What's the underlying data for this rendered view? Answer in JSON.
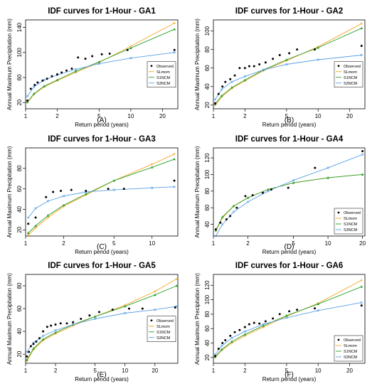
{
  "figure": {
    "legend_labels": [
      "Observed",
      "SLmom",
      "S1NCM",
      "S3NCM"
    ]
  },
  "colors": {
    "Observed": "#000000",
    "SLmom": "#f5a623",
    "S1NCM": "#2aa02a",
    "S3NCM": "#5aa0e6"
  },
  "chart_data": [
    {
      "type": "line",
      "title": "IDF curves for 1-Hour - GA1",
      "xlabel": "Return period (years)",
      "ylabel": "Annual Maximum Precipitation (mm)",
      "panel_letter": "(A)",
      "xscale": "log",
      "xlim": [
        1,
        28
      ],
      "ylim": [
        10,
        152
      ],
      "xticks": [
        1,
        2,
        5,
        10,
        20
      ],
      "yticks": [
        20,
        60,
        100,
        140
      ],
      "legend_position": "right-middle",
      "observed": {
        "x": [
          1.04,
          1.12,
          1.22,
          1.3,
          1.45,
          1.6,
          1.78,
          2.0,
          2.2,
          2.45,
          2.75,
          3.15,
          3.7,
          4.3,
          5.3,
          6.3,
          9.3,
          26
        ],
        "y": [
          23,
          42,
          48,
          52,
          55,
          58,
          62,
          65,
          68,
          71,
          74,
          92,
          90,
          94,
          97,
          98,
          104,
          104
        ]
      },
      "series": [
        {
          "name": "SLmom",
          "x": [
            1.04,
            1.2,
            1.5,
            2,
            3,
            5,
            10,
            26
          ],
          "y": [
            20,
            33,
            45,
            55,
            68,
            84,
            110,
            147
          ]
        },
        {
          "name": "S1NCM",
          "x": [
            1.04,
            1.2,
            1.5,
            2,
            3,
            5,
            10,
            26
          ],
          "y": [
            21,
            34,
            46,
            56,
            70,
            85,
            107,
            137
          ]
        },
        {
          "name": "S3NCM",
          "x": [
            1.04,
            1.2,
            1.5,
            2,
            3,
            5,
            10,
            26
          ],
          "y": [
            30,
            45,
            56,
            64,
            73,
            82,
            91,
            100
          ]
        }
      ]
    },
    {
      "type": "line",
      "title": "IDF curves for 1-Hour - GA2",
      "xlabel": "Return period (years)",
      "ylabel": "Annual Maximum Precipitation (mm)",
      "panel_letter": "(B)",
      "xscale": "log",
      "xlim": [
        1,
        28
      ],
      "ylim": [
        16,
        112
      ],
      "xticks": [
        1,
        2,
        5,
        10,
        20
      ],
      "yticks": [
        20,
        40,
        60,
        80,
        100
      ],
      "legend_position": "right-middle",
      "observed": {
        "x": [
          1.04,
          1.12,
          1.22,
          1.3,
          1.45,
          1.6,
          1.78,
          2.0,
          2.2,
          2.45,
          2.75,
          3.15,
          3.7,
          4.3,
          5.3,
          6.3,
          9.3,
          26
        ],
        "y": [
          22,
          32,
          40,
          45,
          48,
          52,
          60,
          60,
          62,
          62,
          64,
          66,
          70,
          74,
          76,
          80,
          80,
          84
        ]
      },
      "series": [
        {
          "name": "SLmom",
          "x": [
            1.04,
            1.2,
            1.5,
            2,
            3,
            5,
            10,
            26
          ],
          "y": [
            20,
            29,
            38,
            46,
            57,
            68,
            83,
            108
          ]
        },
        {
          "name": "S1NCM",
          "x": [
            1.04,
            1.2,
            1.5,
            2,
            3,
            5,
            10,
            26
          ],
          "y": [
            21,
            30,
            39,
            47,
            58,
            69,
            82,
            103
          ]
        },
        {
          "name": "S3NCM",
          "x": [
            1.04,
            1.2,
            1.5,
            2,
            3,
            5,
            10,
            26
          ],
          "y": [
            26,
            37,
            45,
            51,
            58,
            64,
            69,
            74
          ]
        }
      ]
    },
    {
      "type": "line",
      "title": "IDF curves for 1-Hour - GA3",
      "xlabel": "Return period (years)",
      "ylabel": "Annual Maximum Precipitation (mm)",
      "panel_letter": "(C)",
      "xscale": "log",
      "xlim": [
        1,
        16
      ],
      "ylim": [
        14,
        100
      ],
      "xticks": [
        1,
        2,
        5,
        10
      ],
      "yticks": [
        20,
        40,
        60,
        80
      ],
      "legend_position": "none",
      "observed": {
        "x": [
          1.05,
          1.2,
          1.45,
          1.65,
          1.9,
          2.3,
          3.0,
          4.5,
          6.0,
          15
        ],
        "y": [
          26,
          32,
          52,
          57,
          58,
          59,
          58,
          60,
          60,
          68
        ]
      },
      "series": [
        {
          "name": "SLmom",
          "x": [
            1.05,
            1.2,
            1.5,
            2,
            3,
            5,
            10,
            15
          ],
          "y": [
            15,
            22,
            32,
            43,
            54,
            68,
            84,
            94
          ]
        },
        {
          "name": "S1NCM",
          "x": [
            1.05,
            1.2,
            1.5,
            2,
            3,
            5,
            10,
            15
          ],
          "y": [
            17,
            24,
            34,
            44,
            55,
            68,
            81,
            89
          ]
        },
        {
          "name": "S3NCM",
          "x": [
            1.05,
            1.2,
            1.5,
            2,
            3,
            5,
            10,
            15
          ],
          "y": [
            32,
            41,
            48,
            53,
            57,
            59,
            61,
            62
          ]
        }
      ]
    },
    {
      "type": "line",
      "title": "IDF curves for 1-Hour - GA4",
      "xlabel": "Return period (years)",
      "ylabel": "Annual Maximum Precipitation (mm)",
      "panel_letter": "(D)",
      "xscale": "log",
      "xlim": [
        1,
        21
      ],
      "ylim": [
        26,
        132
      ],
      "xticks": [
        1,
        2,
        5,
        10,
        20
      ],
      "yticks": [
        40,
        60,
        80,
        100,
        120
      ],
      "legend_position": "right-bottom",
      "observed": {
        "x": [
          1.05,
          1.15,
          1.3,
          1.4,
          1.6,
          1.9,
          2.2,
          2.7,
          3.2,
          4.5,
          7.7,
          20
        ],
        "y": [
          34,
          42,
          46,
          50,
          60,
          74,
          75,
          78,
          82,
          84,
          108,
          128
        ]
      },
      "series": [
        {
          "name": "SLmom",
          "x": [
            1.05,
            1.2,
            1.5,
            2,
            3,
            5,
            10,
            20
          ],
          "y": [
            32,
            48,
            62,
            72,
            82,
            90,
            96,
            100
          ]
        },
        {
          "name": "S1NCM",
          "x": [
            1.05,
            1.2,
            1.5,
            2,
            3,
            5,
            10,
            20
          ],
          "y": [
            33,
            49,
            62,
            72,
            82,
            90,
            96,
            100
          ]
        },
        {
          "name": "S3NCM",
          "x": [
            1.05,
            1.2,
            1.5,
            2,
            3,
            5,
            10,
            20
          ],
          "y": [
            26,
            40,
            55,
            67,
            80,
            93,
            108,
            124
          ]
        }
      ]
    },
    {
      "type": "line",
      "title": "IDF curves for 1-Hour - GA5",
      "xlabel": "Return period (years)",
      "ylabel": "Annual Maximum Precipitation (mm)",
      "panel_letter": "(E)",
      "xscale": "log",
      "xlim": [
        1,
        34
      ],
      "ylim": [
        12,
        90
      ],
      "xticks": [
        1,
        2,
        5,
        10,
        20
      ],
      "yticks": [
        20,
        40,
        60,
        80
      ],
      "legend_position": "right-middle",
      "observed": {
        "x": [
          1.03,
          1.08,
          1.13,
          1.2,
          1.28,
          1.38,
          1.5,
          1.65,
          1.8,
          2.0,
          2.25,
          2.6,
          3.0,
          3.6,
          4.4,
          5.5,
          7.5,
          11,
          15,
          32
        ],
        "y": [
          18,
          22,
          27,
          29,
          31,
          34,
          40,
          44,
          45,
          46,
          47,
          47,
          48,
          51,
          54,
          57,
          59,
          60,
          60,
          61
        ]
      },
      "series": [
        {
          "name": "SLmom",
          "x": [
            1.03,
            1.2,
            1.5,
            2,
            3,
            5,
            10,
            20,
            33
          ],
          "y": [
            14,
            24,
            32,
            38,
            45,
            53,
            63,
            75,
            86
          ]
        },
        {
          "name": "S1NCM",
          "x": [
            1.03,
            1.2,
            1.5,
            2,
            3,
            5,
            10,
            20,
            33
          ],
          "y": [
            15,
            25,
            33,
            39,
            46,
            53,
            62,
            72,
            80
          ]
        },
        {
          "name": "S3NCM",
          "x": [
            1.03,
            1.2,
            1.5,
            2,
            3,
            5,
            10,
            20,
            33
          ],
          "y": [
            22,
            30,
            36,
            41,
            46,
            51,
            56,
            59,
            62
          ]
        }
      ]
    },
    {
      "type": "line",
      "title": "IDF curves for 1-Hour - GA6",
      "xlabel": "Return period (years)",
      "ylabel": "Annual Maximum Precipitation (mm)",
      "panel_letter": "(F)",
      "xscale": "log",
      "xlim": [
        1,
        28
      ],
      "ylim": [
        12,
        135
      ],
      "xticks": [
        1,
        2,
        5,
        10,
        20
      ],
      "yticks": [
        20,
        40,
        60,
        80,
        100,
        120
      ],
      "legend_position": "right-bottom",
      "observed": {
        "x": [
          1.04,
          1.12,
          1.22,
          1.3,
          1.45,
          1.6,
          1.78,
          2.0,
          2.2,
          2.45,
          2.75,
          3.15,
          3.7,
          4.3,
          5.3,
          6.3,
          9.3,
          26
        ],
        "y": [
          22,
          32,
          40,
          44,
          50,
          55,
          58,
          62,
          66,
          68,
          67,
          70,
          74,
          80,
          84,
          86,
          88,
          92
        ]
      },
      "series": [
        {
          "name": "SLmom",
          "x": [
            1.04,
            1.2,
            1.5,
            2,
            3,
            5,
            10,
            26
          ],
          "y": [
            20,
            30,
            40,
            50,
            62,
            77,
            95,
            127
          ]
        },
        {
          "name": "S1NCM",
          "x": [
            1.04,
            1.2,
            1.5,
            2,
            3,
            5,
            10,
            26
          ],
          "y": [
            21,
            31,
            42,
            52,
            64,
            78,
            94,
            118
          ]
        },
        {
          "name": "S3NCM",
          "x": [
            1.04,
            1.2,
            1.5,
            2,
            3,
            5,
            10,
            26
          ],
          "y": [
            24,
            36,
            47,
            56,
            66,
            75,
            85,
            96
          ]
        }
      ]
    }
  ]
}
